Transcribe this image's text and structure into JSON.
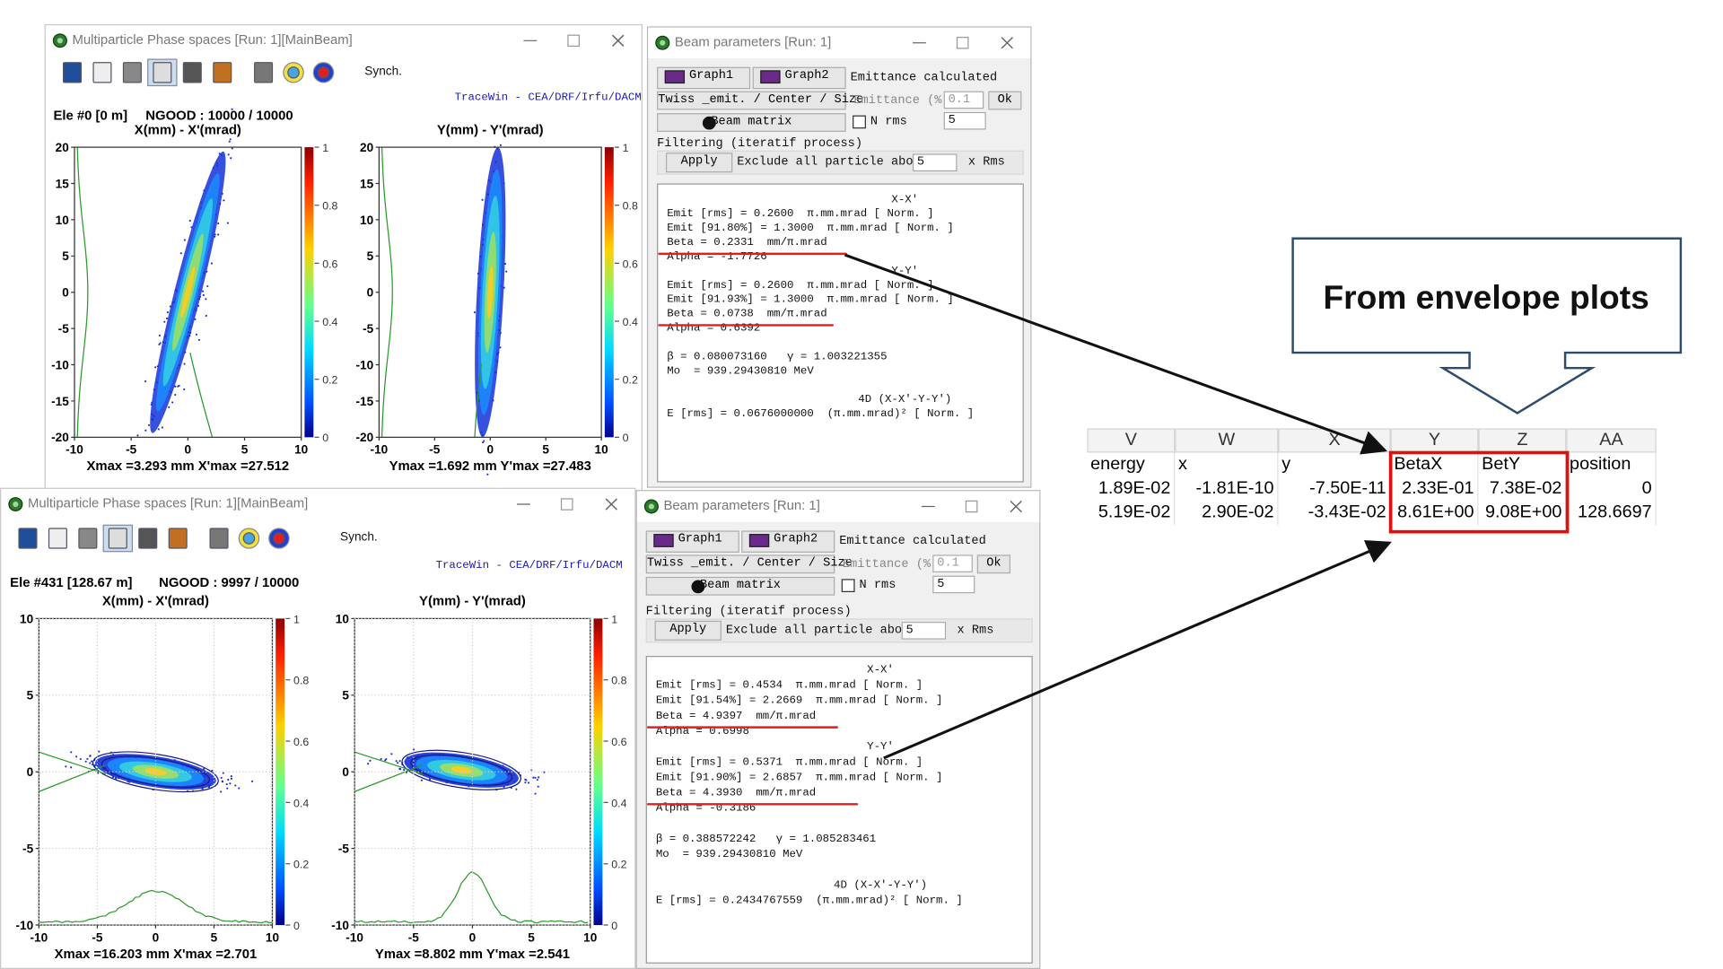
{
  "phase_windows": [
    {
      "title": "Multiparticle Phase spaces [Run: 1][MainBeam]",
      "synch": "Synch.",
      "credit": "TraceWin - CEA/DRF/Irfu/DACM",
      "element": "Ele #0 [0 m]",
      "ngood": "NGOOD : 10000 / 10000",
      "plots": [
        {
          "title": "X(mm) - X'(mrad)",
          "yticks": [
            "20",
            "15",
            "10",
            "5",
            "0",
            "-5",
            "-10",
            "-15",
            "-20"
          ],
          "xticks": [
            "-10",
            "-5",
            "0",
            "5",
            "10"
          ],
          "cbticks": [
            "1",
            "0.8",
            "0.6",
            "0.4",
            "0.2",
            "0"
          ],
          "footer": "Xmax =3.293 mm  X'max =27.512"
        },
        {
          "title": "Y(mm) - Y'(mrad)",
          "yticks": [
            "20",
            "15",
            "10",
            "5",
            "0",
            "-5",
            "-10",
            "-15",
            "-20"
          ],
          "xticks": [
            "-10",
            "-5",
            "0",
            "5",
            "10"
          ],
          "cbticks": [
            "1",
            "0.8",
            "0.6",
            "0.4",
            "0.2",
            "0"
          ],
          "footer": "Ymax =1.692 mm  Y'max =27.483"
        }
      ]
    },
    {
      "title": "Multiparticle Phase spaces [Run: 1][MainBeam]",
      "synch": "Synch.",
      "credit": "TraceWin - CEA/DRF/Irfu/DACM",
      "element": "Ele #431 [128.67 m]",
      "ngood": "NGOOD : 9997 / 10000",
      "plots": [
        {
          "title": "X(mm) - X'(mrad)",
          "yticks": [
            "10",
            "5",
            "0",
            "-5",
            "-10"
          ],
          "xticks": [
            "-10",
            "-5",
            "0",
            "5",
            "10"
          ],
          "cbticks": [
            "1",
            "0.8",
            "0.6",
            "0.4",
            "0.2",
            "0"
          ],
          "footer": "Xmax =16.203 mm  X'max =2.701"
        },
        {
          "title": "Y(mm) - Y'(mrad)",
          "yticks": [
            "10",
            "5",
            "0",
            "-5",
            "-10"
          ],
          "xticks": [
            "-10",
            "-5",
            "0",
            "5",
            "10"
          ],
          "cbticks": [
            "1",
            "0.8",
            "0.6",
            "0.4",
            "0.2",
            "0"
          ],
          "footer": "Ymax =8.802 mm  Y'max =2.541"
        }
      ]
    }
  ],
  "param_windows": [
    {
      "title": "Beam parameters [Run: 1]",
      "graph1": "Graph1",
      "graph2": "Graph2",
      "emittance_calculated": "Emittance calculated",
      "twiss": "Twiss _emit. / Center / Size",
      "emittance_pct_label": "Emittance (%)",
      "emittance_pct": "0.1",
      "ok": "Ok",
      "beam_matrix": "Beam matrix",
      "n_rms_label": "N rms",
      "n_rms": "5",
      "filtering": "Filtering (iteratif process)",
      "apply": "Apply",
      "exclude": "Exclude all particle above",
      "exclude_value": "5",
      "x_rms": "x Rms",
      "xx": {
        "header": "X-X'",
        "lines": [
          "Emit [rms] = 0.2600  π.mm.mrad [ Norm. ]",
          "Emit [91.80%] = 1.3000  π.mm.mrad [ Norm. ]",
          "Beta = 0.2331  mm/π.mrad",
          "Alpha = -1.7726"
        ]
      },
      "yy": {
        "header": "Y-Y'",
        "lines": [
          "Emit [rms] = 0.2600  π.mm.mrad [ Norm. ]",
          "Emit [91.93%] = 1.3000  π.mm.mrad [ Norm. ]",
          "Beta = 0.0738  mm/π.mrad",
          "Alpha = 0.6392"
        ]
      },
      "beta_gamma": "β = 0.080073160   γ = 1.003221355",
      "mo": "Mo  = 939.29430810 MeV",
      "header_4d": "4D (X-X'-Y-Y')",
      "e_rms": "E [rms] = 0.0676000000  (π.mm.mrad)² [ Norm. ]"
    },
    {
      "title": "Beam parameters [Run: 1]",
      "graph1": "Graph1",
      "graph2": "Graph2",
      "emittance_calculated": "Emittance calculated",
      "twiss": "Twiss _emit. / Center / Size",
      "emittance_pct_label": "Emittance (%)",
      "emittance_pct": "0.1",
      "ok": "Ok",
      "beam_matrix": "Beam matrix",
      "n_rms_label": "N rms",
      "n_rms": "5",
      "filtering": "Filtering (iteratif process)",
      "apply": "Apply",
      "exclude": "Exclude all particle above",
      "exclude_value": "5",
      "x_rms": "x Rms",
      "xx": {
        "header": "X-X'",
        "lines": [
          "Emit [rms] = 0.4534  π.mm.mrad [ Norm. ]",
          "Emit [91.54%] = 2.2669  π.mm.mrad [ Norm. ]",
          "Beta = 4.9397  mm/π.mrad",
          "Alpha = 0.6998"
        ]
      },
      "yy": {
        "header": "Y-Y'",
        "lines": [
          "Emit [rms] = 0.5371  π.mm.mrad [ Norm. ]",
          "Emit [91.90%] = 2.6857  π.mm.mrad [ Norm. ]",
          "Beta = 4.3930  mm/π.mrad",
          "Alpha = -0.3186"
        ]
      },
      "beta_gamma": "β = 0.388572242   γ = 1.085283461",
      "mo": "Mo  = 939.29430810 MeV",
      "header_4d": "4D (X-X'-Y-Y')",
      "e_rms": "E [rms] = 0.2434767559  (π.mm.mrad)² [ Norm. ]"
    }
  ],
  "spreadsheet": {
    "columns": [
      "V",
      "W",
      "X",
      "Y",
      "Z",
      "AA"
    ],
    "rows": [
      [
        "energy",
        "x",
        "y",
        "BetaX",
        "BetY",
        "position"
      ],
      [
        "1.89E-02",
        "-1.81E-10",
        "-7.50E-11",
        "2.33E-01",
        "7.38E-02",
        "0"
      ],
      [
        "5.19E-02",
        "2.90E-02",
        "-3.43E-02",
        "8.61E+00",
        "9.08E+00",
        "128.6697"
      ]
    ]
  },
  "callout": "From envelope plots"
}
